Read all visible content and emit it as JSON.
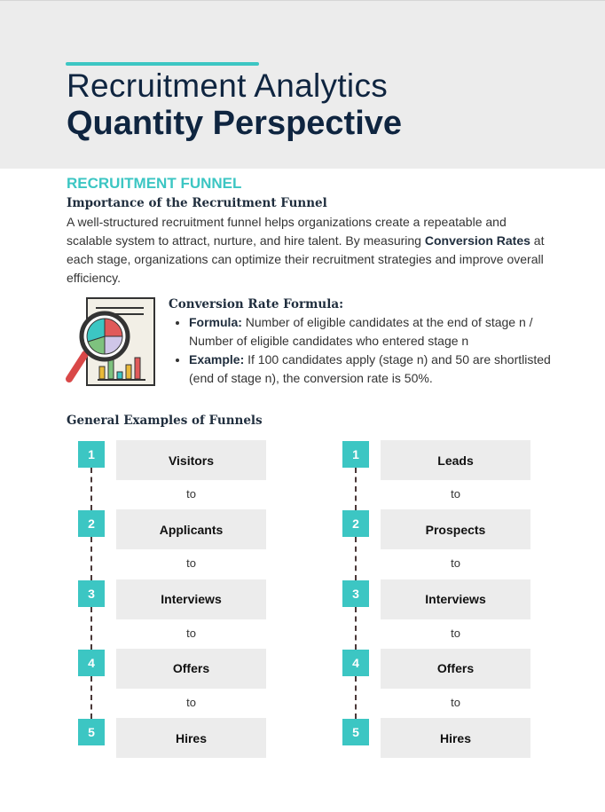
{
  "header": {
    "title_line1": "Recruitment Analytics",
    "title_line2": "Quantity Perspective"
  },
  "section": {
    "heading": "RECRUITMENT FUNNEL",
    "subheading": "Importance of the Recruitment Funnel",
    "paragraph": {
      "before": "A well-structured recruitment funnel helps organizations create a repeatable and scalable system to attract, nurture, and hire talent. By measuring ",
      "bold": "Conversion Rates",
      "after": " at each stage, organizations can optimize their recruitment strategies and improve overall efficiency."
    }
  },
  "formula": {
    "heading": "Conversion Rate Formula:",
    "bullets": [
      {
        "label": "Formula:",
        "text": " Number of eligible candidates at the end of stage n / Number of eligible candidates who entered stage n"
      },
      {
        "label": "Example:",
        "text": " If 100 candidates apply (stage n) and 50 are shortlisted (end of stage n), the conversion rate is 50%."
      }
    ]
  },
  "examples": {
    "heading": "General Examples of Funnels",
    "funnels": [
      {
        "steps": [
          {
            "number": 1,
            "label": "Visitors"
          },
          {
            "number": 2,
            "label": "Applicants"
          },
          {
            "number": 3,
            "label": "Interviews"
          },
          {
            "number": 4,
            "label": "Offers"
          },
          {
            "number": 5,
            "label": "Hires"
          }
        ],
        "connectors": [
          "to",
          "to",
          "to",
          "to"
        ]
      },
      {
        "steps": [
          {
            "number": 1,
            "label": "Leads"
          },
          {
            "number": 2,
            "label": "Prospects"
          },
          {
            "number": 3,
            "label": "Interviews"
          },
          {
            "number": 4,
            "label": "Offers"
          },
          {
            "number": 5,
            "label": "Hires"
          }
        ],
        "connectors": [
          "to",
          "to",
          "to",
          "to"
        ]
      }
    ]
  }
}
